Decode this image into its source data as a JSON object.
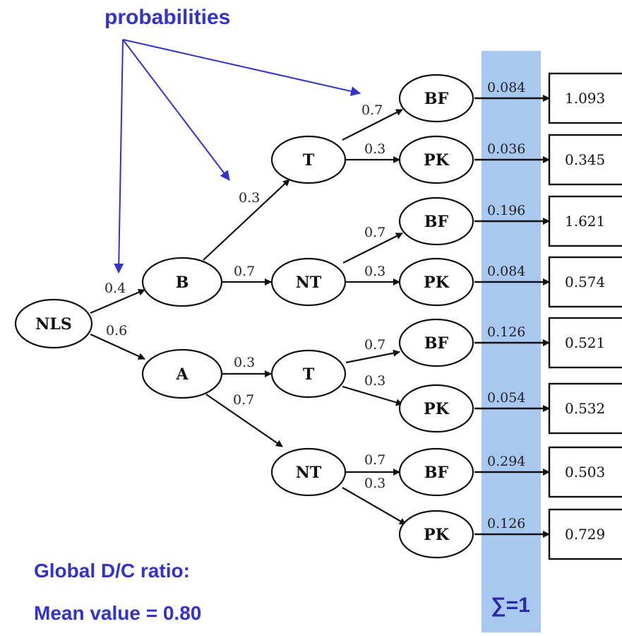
{
  "annotations": {
    "probabilities": "probabilities",
    "global_ratio": "Global D/C ratio:",
    "mean_value": "Mean value = 0.80",
    "sum": "∑=1"
  },
  "colors": {
    "annotation_blue": "#3333cc",
    "column_highlight": "#a8c8f0"
  },
  "nodes": {
    "root": "NLS",
    "b": "B",
    "a": "A",
    "b_t": "T",
    "b_nt": "NT",
    "a_t": "T",
    "a_nt": "NT",
    "leaf1": "BF",
    "leaf2": "PK",
    "leaf3": "BF",
    "leaf4": "PK",
    "leaf5": "BF",
    "leaf6": "PK",
    "leaf7": "BF",
    "leaf8": "PK"
  },
  "edge_probabilities": {
    "nls_b": "0.4",
    "nls_a": "0.6",
    "b_t": "0.3",
    "b_nt": "0.7",
    "a_t": "0.3",
    "a_nt": "0.7",
    "bt_bf": "0.7",
    "bt_pk": "0.3",
    "bnt_bf": "0.7",
    "bnt_pk": "0.3",
    "at_bf": "0.7",
    "at_pk": "0.3",
    "ant_bf": "0.7",
    "ant_pk": "0.3"
  },
  "path_probabilities": [
    "0.084",
    "0.036",
    "0.196",
    "0.084",
    "0.126",
    "0.054",
    "0.294",
    "0.126"
  ],
  "dc_ratios": [
    "1.093",
    "0.345",
    "1.621",
    "0.574",
    "0.521",
    "0.532",
    "0.503",
    "0.729"
  ]
}
